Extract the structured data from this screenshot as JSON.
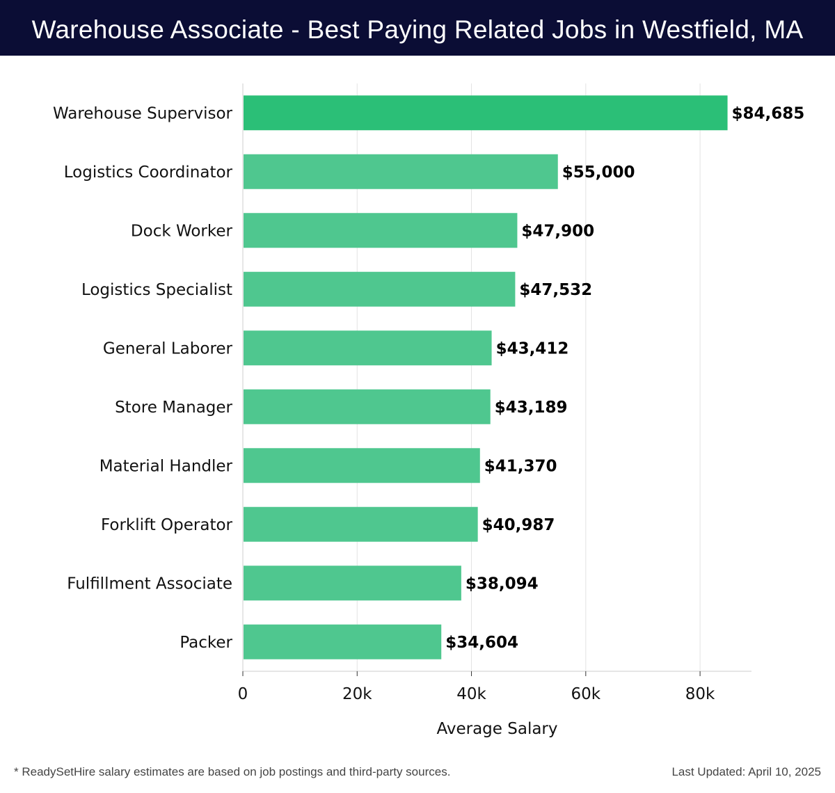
{
  "header": {
    "title": "Warehouse Associate - Best Paying Related Jobs in Westfield, MA",
    "background": "#0b0d35"
  },
  "chart_data": {
    "type": "bar",
    "orientation": "horizontal",
    "categories": [
      "Warehouse Supervisor",
      "Logistics Coordinator",
      "Dock Worker",
      "Logistics Specialist",
      "General Laborer",
      "Store Manager",
      "Material Handler",
      "Forklift Operator",
      "Fulfillment Associate",
      "Packer"
    ],
    "values": [
      84685,
      55000,
      47900,
      47532,
      43412,
      43189,
      41370,
      40987,
      38094,
      34604
    ],
    "value_labels": [
      "$84,685",
      "$55,000",
      "$47,900",
      "$47,532",
      "$43,412",
      "$43,189",
      "$41,370",
      "$40,987",
      "$38,094",
      "$34,604"
    ],
    "xlabel": "Average Salary",
    "ylabel": "",
    "xlim": [
      0,
      89000
    ],
    "xticks": [
      0,
      20000,
      40000,
      60000,
      80000
    ],
    "xtick_labels": [
      "0",
      "20k",
      "40k",
      "60k",
      "80k"
    ],
    "grid": true,
    "colors": {
      "top_bar": "#2bbf77",
      "bar": "#4fc78f",
      "grid": "#e3e3e3",
      "axis": "#cccccc"
    }
  },
  "footer": {
    "note": "* ReadySetHire salary estimates are based on job postings and third-party sources.",
    "updated": "Last Updated: April 10, 2025"
  }
}
